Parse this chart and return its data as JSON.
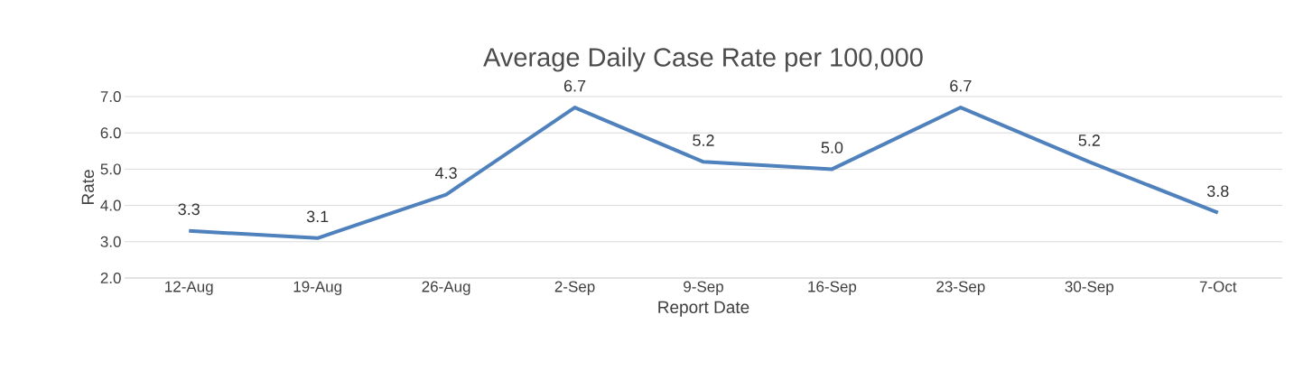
{
  "chart_data": {
    "type": "line",
    "title": "Average Daily Case Rate per 100,000",
    "xlabel": "Report Date",
    "ylabel": "Rate",
    "categories": [
      "12-Aug",
      "19-Aug",
      "26-Aug",
      "2-Sep",
      "9-Sep",
      "16-Sep",
      "23-Sep",
      "30-Sep",
      "7-Oct"
    ],
    "series": [
      {
        "color": "#4f81bd",
        "values": [
          3.3,
          3.1,
          4.3,
          6.7,
          5.2,
          5.0,
          6.7,
          5.2,
          3.8
        ],
        "value_labels": [
          "3.3",
          "3.1",
          "4.3",
          "6.7",
          "5.2",
          "5.0",
          "6.7",
          "5.2",
          "3.8"
        ]
      }
    ],
    "ylim": [
      2,
      7
    ],
    "yticks": [
      {
        "value": 2,
        "label": "2.0"
      },
      {
        "value": 3,
        "label": "3.0"
      },
      {
        "value": 4,
        "label": "4.0"
      },
      {
        "value": 5,
        "label": "5.0"
      },
      {
        "value": 6,
        "label": "6.0"
      },
      {
        "value": 7,
        "label": "7.0"
      }
    ],
    "grid": "y",
    "marker": "none",
    "line_style": "solid"
  }
}
